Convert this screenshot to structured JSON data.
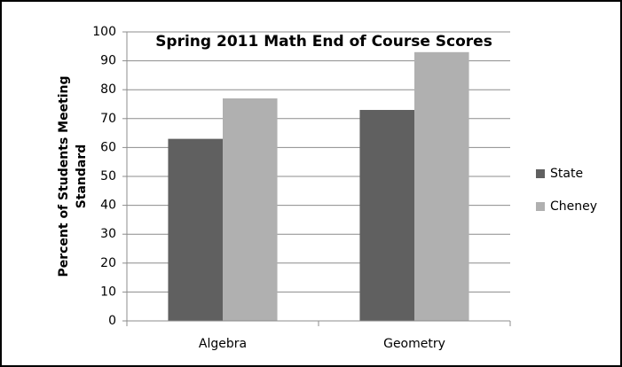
{
  "chart_data": {
    "type": "bar",
    "title": "Spring 2011 Math End of Course Scores",
    "ylabel": [
      "Percent of Students Meeting",
      "Standard"
    ],
    "categories": [
      "Algebra",
      "Geometry"
    ],
    "series": [
      {
        "name": "State",
        "color": "#606060",
        "values": [
          63,
          73
        ]
      },
      {
        "name": "Cheney",
        "color": "#b0b0b0",
        "values": [
          77,
          93
        ]
      }
    ],
    "ylim": [
      0,
      100
    ],
    "yticks": [
      0,
      10,
      20,
      30,
      40,
      50,
      60,
      70,
      80,
      90,
      100
    ],
    "grid": true,
    "legend": "right"
  }
}
